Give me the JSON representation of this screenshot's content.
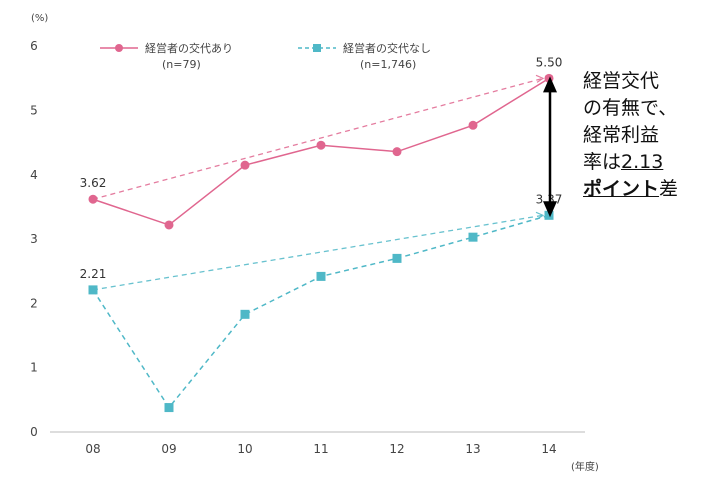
{
  "chart_data": {
    "type": "line",
    "y_unit": "(%)",
    "x_unit": "(年度)",
    "categories": [
      "08",
      "09",
      "10",
      "11",
      "12",
      "13",
      "14"
    ],
    "ylim": [
      0,
      6
    ],
    "yticks": [
      "0",
      "1",
      "2",
      "3",
      "4",
      "5",
      "6"
    ],
    "grid": false,
    "legend_position": "top",
    "series": [
      {
        "name": "経営者の交代あり",
        "n_label": "(n=79)",
        "color": "#e0668f",
        "marker": "circle",
        "values": [
          3.62,
          3.22,
          4.15,
          4.46,
          4.36,
          4.77,
          5.5
        ],
        "trend": [
          3.62,
          5.5
        ],
        "labels": {
          "0": "3.62",
          "6": "5.50"
        }
      },
      {
        "name": "経営者の交代なし",
        "n_label": "(n=1,746)",
        "color": "#4fb8c7",
        "marker": "square",
        "values": [
          2.21,
          0.38,
          1.83,
          2.42,
          2.7,
          3.03,
          3.37
        ],
        "trend": [
          2.21,
          3.37
        ],
        "labels": {
          "0": "2.21",
          "6": "3.37"
        }
      }
    ]
  },
  "annotation": {
    "line1": "経営交代",
    "line2": "の有無で、",
    "line3": "経常利益",
    "line4_prefix": "率は",
    "line4_value": "2.13",
    "line5_emph": "ポイント",
    "line5_suffix": "差"
  }
}
